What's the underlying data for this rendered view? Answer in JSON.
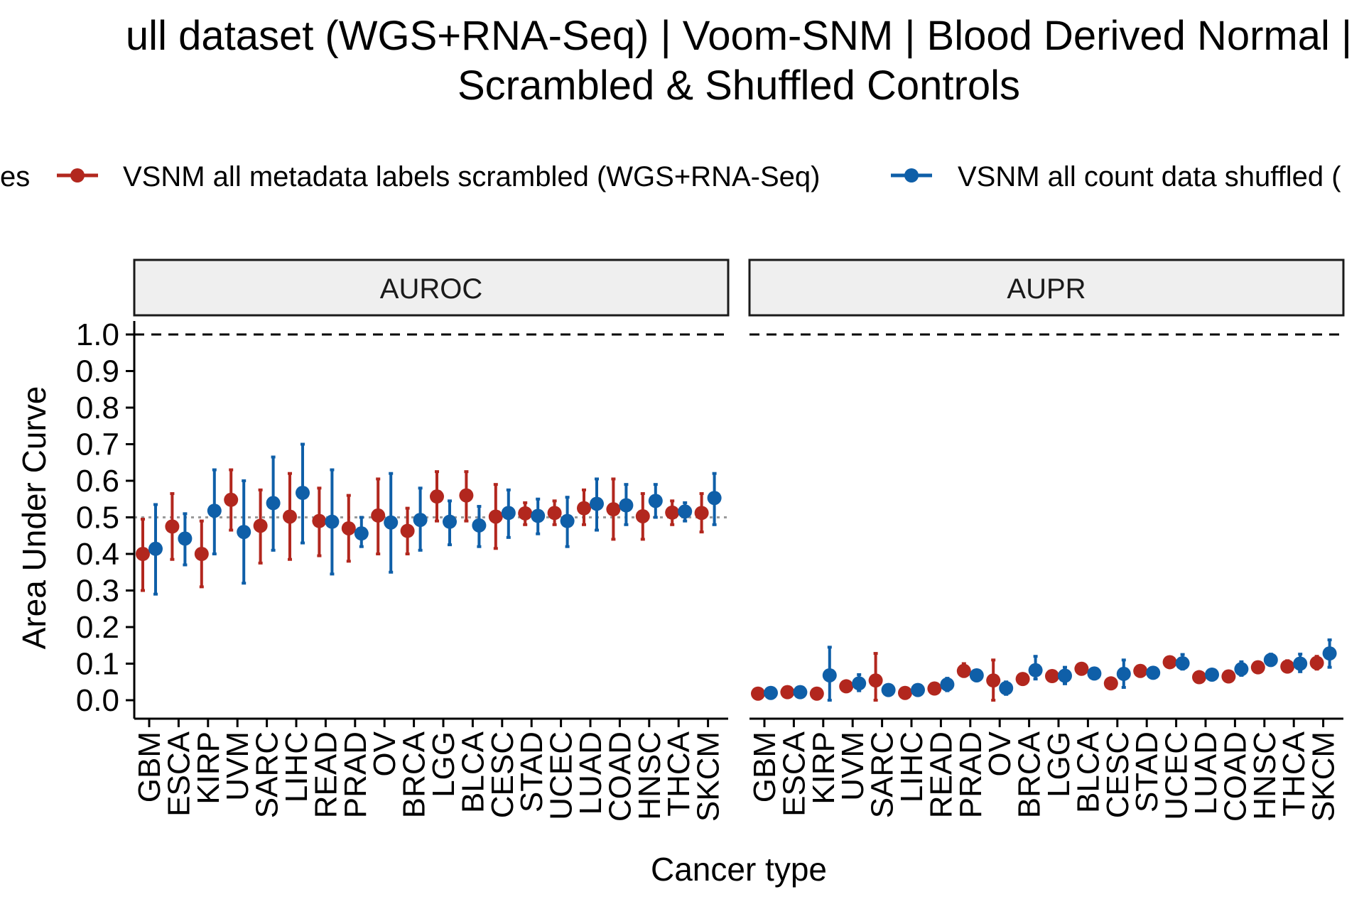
{
  "title": {
    "line1": "ull dataset (WGS+RNA-Seq) | Voom-SNM | Blood Derived Normal |",
    "line2": "Scrambled & Shuffled Controls"
  },
  "legend": {
    "title_fragment": "es",
    "items": [
      {
        "label": "VSNM all metadata labels scrambled (WGS+RNA-Seq)",
        "color": "#B2271E"
      },
      {
        "label": "VSNM all count data shuffled (",
        "color": "#0F5FA8"
      }
    ]
  },
  "axes": {
    "xlabel": "Cancer type",
    "ylabel": "Area Under Curve",
    "ylim": [
      0,
      1.0
    ],
    "yticks": [
      "0.0",
      "0.1",
      "0.2",
      "0.3",
      "0.4",
      "0.5",
      "0.6",
      "0.7",
      "0.8",
      "0.9",
      "1.0"
    ]
  },
  "chart_data": {
    "type": "scatter",
    "categories": [
      "GBM",
      "ESCA",
      "KIRP",
      "UVM",
      "SARC",
      "LIHC",
      "READ",
      "PRAD",
      "OV",
      "BRCA",
      "LGG",
      "BLCA",
      "CESC",
      "STAD",
      "UCEC",
      "LUAD",
      "COAD",
      "HNSC",
      "THCA",
      "SKCM"
    ],
    "reference_lines": {
      "dashed_at": 1.0,
      "dotted_auroc_at": 0.5
    },
    "panels": [
      {
        "name": "AUROC",
        "series": [
          {
            "name": "VSNM all metadata labels scrambled (WGS+RNA-Seq)",
            "values": [
              0.4,
              0.475,
              0.4,
              0.548,
              0.477,
              0.502,
              0.49,
              0.47,
              0.505,
              0.463,
              0.557,
              0.56,
              0.502,
              0.511,
              0.512,
              0.525,
              0.522,
              0.503,
              0.513,
              0.512
            ],
            "lower": [
              0.3,
              0.385,
              0.31,
              0.465,
              0.375,
              0.385,
              0.395,
              0.38,
              0.4,
              0.4,
              0.49,
              0.49,
              0.415,
              0.48,
              0.48,
              0.48,
              0.44,
              0.44,
              0.48,
              0.46
            ],
            "upper": [
              0.495,
              0.565,
              0.49,
              0.63,
              0.575,
              0.62,
              0.58,
              0.56,
              0.605,
              0.525,
              0.625,
              0.625,
              0.59,
              0.54,
              0.545,
              0.575,
              0.605,
              0.565,
              0.545,
              0.565
            ]
          },
          {
            "name": "VSNM all count data shuffled",
            "values": [
              0.414,
              0.442,
              0.518,
              0.46,
              0.539,
              0.567,
              0.488,
              0.456,
              0.486,
              0.493,
              0.488,
              0.478,
              0.512,
              0.504,
              0.49,
              0.537,
              0.533,
              0.545,
              0.516,
              0.553
            ],
            "lower": [
              0.29,
              0.37,
              0.4,
              0.32,
              0.41,
              0.43,
              0.345,
              0.42,
              0.35,
              0.41,
              0.425,
              0.42,
              0.445,
              0.455,
              0.42,
              0.465,
              0.48,
              0.5,
              0.49,
              0.48
            ],
            "upper": [
              0.535,
              0.51,
              0.63,
              0.6,
              0.665,
              0.7,
              0.63,
              0.5,
              0.62,
              0.58,
              0.545,
              0.53,
              0.575,
              0.55,
              0.555,
              0.605,
              0.59,
              0.59,
              0.54,
              0.62
            ]
          }
        ]
      },
      {
        "name": "AUPR",
        "series": [
          {
            "name": "VSNM all metadata labels scrambled (WGS+RNA-Seq)",
            "values": [
              0.018,
              0.022,
              0.018,
              0.038,
              0.054,
              0.02,
              0.032,
              0.08,
              0.054,
              0.058,
              0.066,
              0.086,
              0.046,
              0.08,
              0.104,
              0.063,
              0.065,
              0.09,
              0.092,
              0.102
            ],
            "lower": [
              0.012,
              0.018,
              0.014,
              0.03,
              0.0,
              0.016,
              0.024,
              0.065,
              0.0,
              0.052,
              0.06,
              0.08,
              0.04,
              0.065,
              0.095,
              0.058,
              0.06,
              0.08,
              0.078,
              0.085
            ],
            "upper": [
              0.024,
              0.026,
              0.022,
              0.046,
              0.128,
              0.024,
              0.04,
              0.1,
              0.11,
              0.064,
              0.072,
              0.092,
              0.052,
              0.092,
              0.112,
              0.068,
              0.07,
              0.102,
              0.108,
              0.12
            ]
          },
          {
            "name": "VSNM all count data shuffled",
            "values": [
              0.02,
              0.022,
              0.068,
              0.046,
              0.028,
              0.028,
              0.043,
              0.068,
              0.033,
              0.082,
              0.067,
              0.073,
              0.072,
              0.075,
              0.101,
              0.07,
              0.085,
              0.11,
              0.1,
              0.128
            ],
            "lower": [
              0.016,
              0.018,
              0.0,
              0.026,
              0.022,
              0.022,
              0.026,
              0.062,
              0.016,
              0.058,
              0.045,
              0.067,
              0.035,
              0.068,
              0.085,
              0.058,
              0.068,
              0.096,
              0.078,
              0.09
            ],
            "upper": [
              0.024,
              0.026,
              0.145,
              0.07,
              0.034,
              0.034,
              0.06,
              0.074,
              0.05,
              0.12,
              0.09,
              0.079,
              0.11,
              0.082,
              0.125,
              0.08,
              0.105,
              0.126,
              0.126,
              0.165
            ]
          }
        ]
      }
    ]
  }
}
